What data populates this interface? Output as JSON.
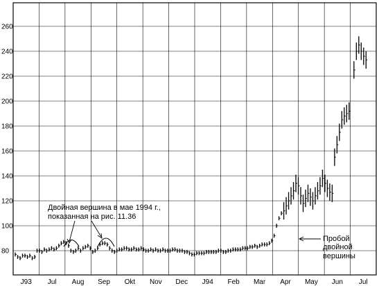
{
  "chart_data": {
    "type": "bar",
    "subtype": "ohlc-price-bars",
    "title": "",
    "xlabel": "",
    "ylabel": "",
    "ylim": [
      70,
      270
    ],
    "y_ticks": [
      80,
      100,
      120,
      140,
      160,
      180,
      200,
      220,
      240,
      260
    ],
    "x_tick_labels": [
      "J93",
      "Jul",
      "Aug",
      "Sep",
      "Okt",
      "Nov",
      "Dec",
      "J94",
      "Feb",
      "Mar",
      "Apr",
      "May",
      "Jun",
      "Jul"
    ],
    "grid": true,
    "legend": "none",
    "series": [
      {
        "values": [
          [
            0,
            77
          ],
          [
            0.5,
            75
          ],
          [
            1,
            74
          ],
          [
            1.5,
            76
          ],
          [
            2,
            76
          ],
          [
            2.5,
            75
          ],
          [
            3,
            76
          ],
          [
            3.5,
            74
          ],
          [
            4,
            75
          ],
          [
            4.5,
            80
          ],
          [
            5,
            80
          ],
          [
            5.5,
            79
          ],
          [
            6,
            81
          ],
          [
            6.5,
            80
          ],
          [
            7,
            81
          ],
          [
            7.5,
            82
          ],
          [
            8,
            81
          ],
          [
            8.5,
            82
          ],
          [
            9,
            84
          ],
          [
            9.5,
            86
          ],
          [
            10,
            87
          ],
          [
            10.5,
            86
          ],
          [
            11,
            84
          ],
          [
            11.5,
            80
          ],
          [
            12,
            79
          ],
          [
            12.5,
            80
          ],
          [
            13,
            82
          ],
          [
            13.5,
            80
          ],
          [
            14,
            82
          ],
          [
            14.5,
            83
          ],
          [
            15,
            84
          ],
          [
            15.5,
            82
          ],
          [
            16,
            79
          ],
          [
            16.5,
            80
          ],
          [
            17,
            82
          ],
          [
            17.5,
            85
          ],
          [
            18,
            86
          ],
          [
            18.5,
            86
          ],
          [
            19,
            85
          ],
          [
            19.5,
            82
          ],
          [
            20,
            80
          ],
          [
            20.5,
            79
          ],
          [
            21,
            80
          ],
          [
            21.5,
            81
          ],
          [
            22,
            81
          ],
          [
            22.5,
            82
          ],
          [
            23,
            82
          ],
          [
            23.5,
            81
          ],
          [
            24,
            81
          ],
          [
            24.5,
            82
          ],
          [
            25,
            81
          ],
          [
            25.5,
            81
          ],
          [
            26,
            82
          ],
          [
            26.5,
            81
          ],
          [
            27,
            80
          ],
          [
            27.5,
            80
          ],
          [
            28,
            81
          ],
          [
            28.5,
            80
          ],
          [
            29,
            81
          ],
          [
            29.5,
            80
          ],
          [
            30,
            80
          ],
          [
            30.5,
            81
          ],
          [
            31,
            80
          ],
          [
            31.5,
            80
          ],
          [
            32,
            80
          ],
          [
            32.5,
            81
          ],
          [
            33,
            81
          ],
          [
            33.5,
            80
          ],
          [
            34,
            80
          ],
          [
            34.5,
            80
          ],
          [
            35,
            79
          ],
          [
            35.5,
            79
          ],
          [
            36,
            78
          ],
          [
            36.5,
            77
          ],
          [
            37,
            77
          ],
          [
            37.5,
            78
          ],
          [
            38,
            78
          ],
          [
            38.5,
            78
          ],
          [
            39,
            78
          ],
          [
            39.5,
            79
          ],
          [
            40,
            79
          ],
          [
            40.5,
            79
          ],
          [
            41,
            79
          ],
          [
            41.5,
            79
          ],
          [
            42,
            80
          ],
          [
            42.5,
            80
          ],
          [
            43,
            79
          ],
          [
            43.5,
            79
          ],
          [
            44,
            80
          ],
          [
            44.5,
            80
          ],
          [
            45,
            81
          ],
          [
            45.5,
            81
          ],
          [
            46,
            81
          ],
          [
            46.5,
            81
          ],
          [
            47,
            82
          ],
          [
            47.5,
            82
          ],
          [
            48,
            82
          ],
          [
            48.5,
            83
          ],
          [
            49,
            83
          ],
          [
            49.5,
            84
          ],
          [
            50,
            83
          ],
          [
            50.5,
            84
          ],
          [
            51,
            85
          ],
          [
            51.5,
            85
          ],
          [
            52,
            85
          ],
          [
            52.5,
            86
          ],
          [
            53,
            88
          ],
          [
            53.5,
            92
          ],
          [
            54,
            100
          ],
          [
            54.5,
            106
          ],
          [
            55,
            110
          ],
          [
            55.5,
            112
          ],
          [
            56,
            116
          ],
          [
            56.5,
            120
          ],
          [
            57,
            124
          ],
          [
            57.5,
            128
          ],
          [
            58,
            134
          ],
          [
            58.5,
            132
          ],
          [
            59,
            124
          ],
          [
            59.5,
            118
          ],
          [
            60,
            122
          ],
          [
            60.5,
            126
          ],
          [
            61,
            123
          ],
          [
            61.5,
            120
          ],
          [
            62,
            124
          ],
          [
            62.5,
            128
          ],
          [
            63,
            132
          ],
          [
            63.5,
            138
          ],
          [
            64,
            134
          ],
          [
            64.5,
            130
          ],
          [
            65,
            127
          ],
          [
            65.5,
            126
          ],
          [
            66,
            155
          ],
          [
            66.5,
            165
          ],
          [
            67,
            175
          ],
          [
            67.5,
            185
          ],
          [
            68,
            188
          ],
          [
            68.5,
            190
          ],
          [
            69,
            192
          ],
          [
            70,
            225
          ],
          [
            70.5,
            240
          ],
          [
            71,
            245
          ],
          [
            71.5,
            240
          ],
          [
            72,
            236
          ],
          [
            72.5,
            233
          ]
        ]
      }
    ],
    "annotations": [
      "Двойная вершина в мае 1994 г.,",
      "показанная на рис. 11.36",
      "Пробой",
      "двойной",
      "вершины"
    ]
  }
}
